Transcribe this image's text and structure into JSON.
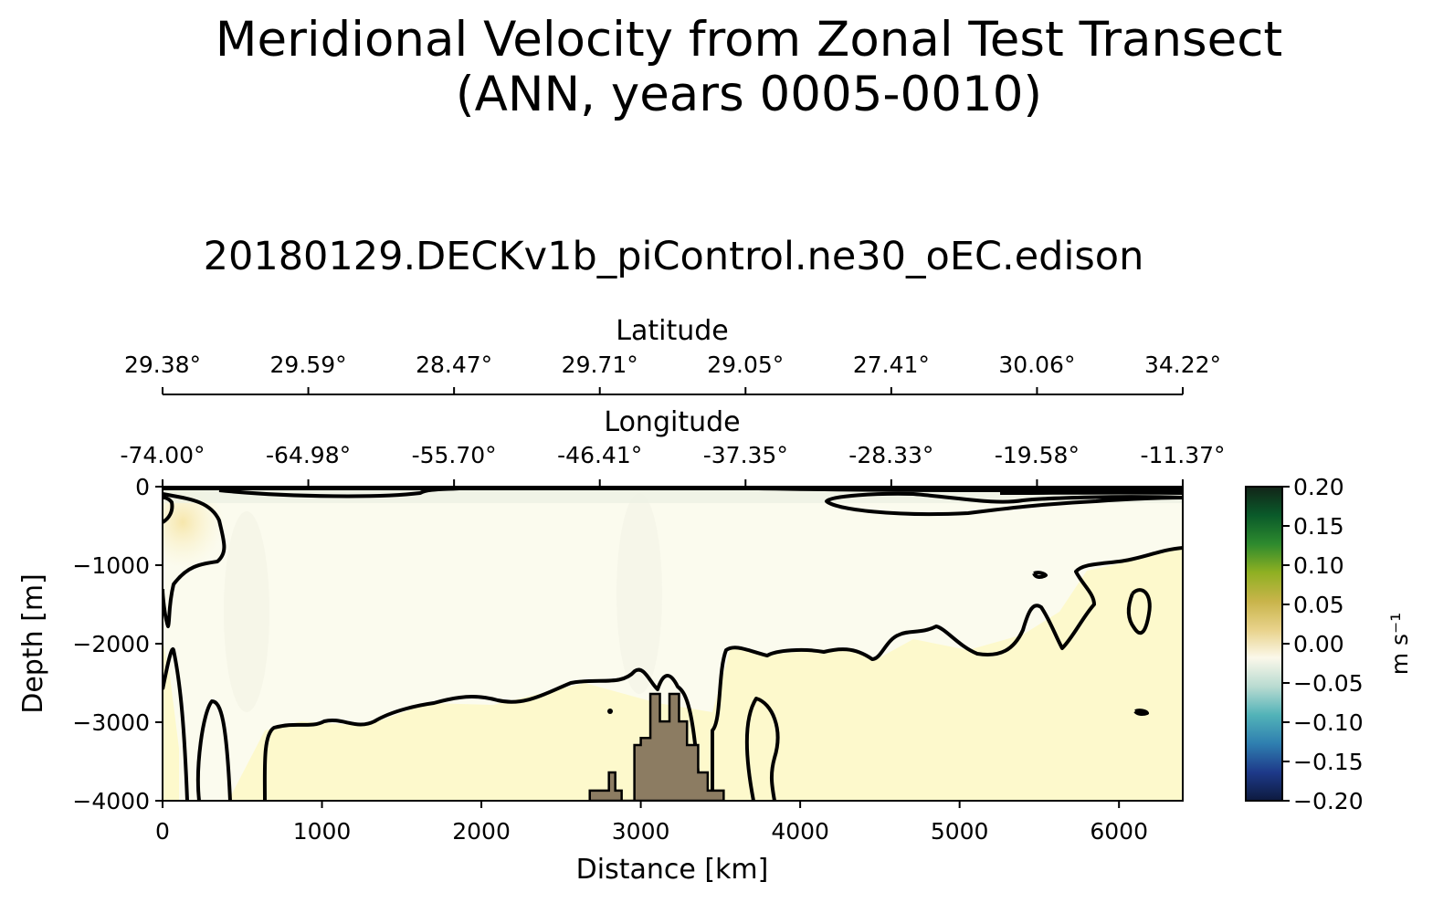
{
  "title_line1": "Meridional Velocity from Zonal Test Transect",
  "title_line2": "(ANN, years 0005-0010)",
  "subtitle": "20180129.DECKv1b_piControl.ne30_oEC.edison",
  "colors": {
    "land": "#8c7c62",
    "contour": "#000000",
    "field_positive": "#fdf8c8",
    "field_near_zero": "#fafbf0"
  },
  "chart_data": {
    "type": "heatmap",
    "description": "Section plot: filled contours of meridional velocity with black contour lines",
    "xlabel": "Distance [km]",
    "ylabel": "Depth [m]",
    "xlim": [
      0,
      6400
    ],
    "ylim": [
      -4000,
      0
    ],
    "x_ticks": [
      0,
      1000,
      2000,
      3000,
      4000,
      5000,
      6000
    ],
    "x_tick_labels": [
      "0",
      "1000",
      "2000",
      "3000",
      "4000",
      "5000",
      "6000"
    ],
    "y_ticks": [
      0,
      -1000,
      -2000,
      -3000,
      -4000
    ],
    "y_tick_labels": [
      "0",
      "−1000",
      "−2000",
      "−3000",
      "−4000"
    ],
    "top_axes": [
      {
        "label": "Latitude",
        "tick_labels": [
          "29.38°",
          "29.59°",
          "28.47°",
          "29.71°",
          "29.05°",
          "27.41°",
          "30.06°",
          "34.22°"
        ]
      },
      {
        "label": "Longitude",
        "tick_labels": [
          "-74.00°",
          "-64.98°",
          "-55.70°",
          "-46.41°",
          "-37.35°",
          "-28.33°",
          "-19.58°",
          "-11.37°"
        ]
      }
    ],
    "colorbar": {
      "label": "m s⁻¹",
      "range": [
        -0.2,
        0.2
      ],
      "ticks": [
        0.2,
        0.15,
        0.1,
        0.05,
        0.0,
        -0.05,
        -0.1,
        -0.15,
        -0.2
      ],
      "tick_labels": [
        "0.20",
        "0.15",
        "0.10",
        "0.05",
        "0.00",
        "−0.05",
        "−0.10",
        "−0.15",
        "−0.20"
      ],
      "stops": [
        "#0d1a3e",
        "#1e3a8a",
        "#2f7fb0",
        "#52b3b8",
        "#b9dbd1",
        "#fbf8ea",
        "#e8d28a",
        "#c8b44a",
        "#8fb022",
        "#2d8a2e",
        "#0a5a2a",
        "#122418"
      ]
    },
    "zero_contour_level": 0.0,
    "bathymetry_distance_km": [
      2680,
      2680,
      2800,
      2800,
      2840,
      2840,
      2880,
      2880,
      2960,
      2960,
      3000,
      3000,
      3060,
      3060,
      3120,
      3120,
      3180,
      3180,
      3240,
      3240,
      3290,
      3290,
      3360,
      3360,
      3420,
      3420,
      3520,
      3520
    ],
    "bathymetry_depth_m": [
      -4000,
      -3870,
      -3870,
      -3640,
      -3640,
      -3870,
      -3870,
      -4000,
      -4000,
      -3290,
      -3290,
      -3200,
      -3200,
      -2640,
      -2640,
      -2990,
      -2990,
      -2640,
      -2640,
      -2990,
      -2990,
      -3290,
      -3290,
      -3640,
      -3640,
      -3870,
      -3870,
      -4000
    ]
  }
}
